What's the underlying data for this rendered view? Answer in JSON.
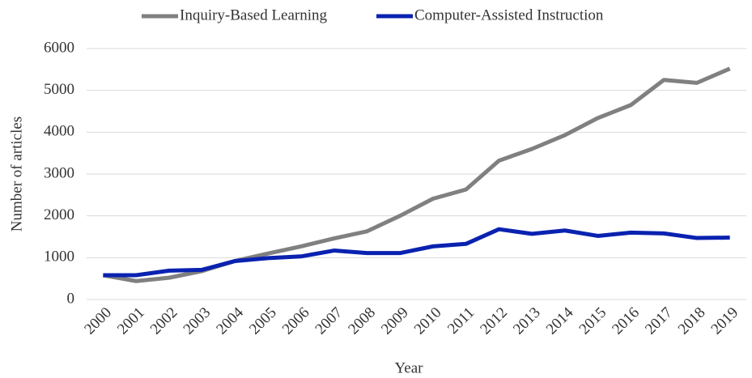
{
  "chart_data": {
    "type": "line",
    "x_label": "Year",
    "y_label": "Number of articles",
    "categories": [
      "2000",
      "2001",
      "2002",
      "2003",
      "2004",
      "2005",
      "2006",
      "2007",
      "2008",
      "2009",
      "2010",
      "2011",
      "2012",
      "2013",
      "2014",
      "2015",
      "2016",
      "2017",
      "2018",
      "2019"
    ],
    "series": [
      {
        "name": "Inquiry-Based Learning",
        "color": "#808080",
        "values": [
          580,
          440,
          520,
          680,
          920,
          1100,
          1270,
          1460,
          1630,
          2000,
          2410,
          2630,
          3320,
          3600,
          3930,
          4340,
          4650,
          5250,
          5180,
          5520
        ]
      },
      {
        "name": "Computer-Assisted Instruction",
        "color": "#0a22b0",
        "values": [
          580,
          580,
          690,
          710,
          920,
          990,
          1030,
          1170,
          1110,
          1110,
          1270,
          1330,
          1680,
          1570,
          1650,
          1520,
          1600,
          1580,
          1470,
          1480
        ]
      }
    ],
    "ylim": [
      0,
      6000
    ],
    "yticks": [
      0,
      1000,
      2000,
      3000,
      4000,
      5000,
      6000
    ],
    "grid": true,
    "legend": "top"
  }
}
